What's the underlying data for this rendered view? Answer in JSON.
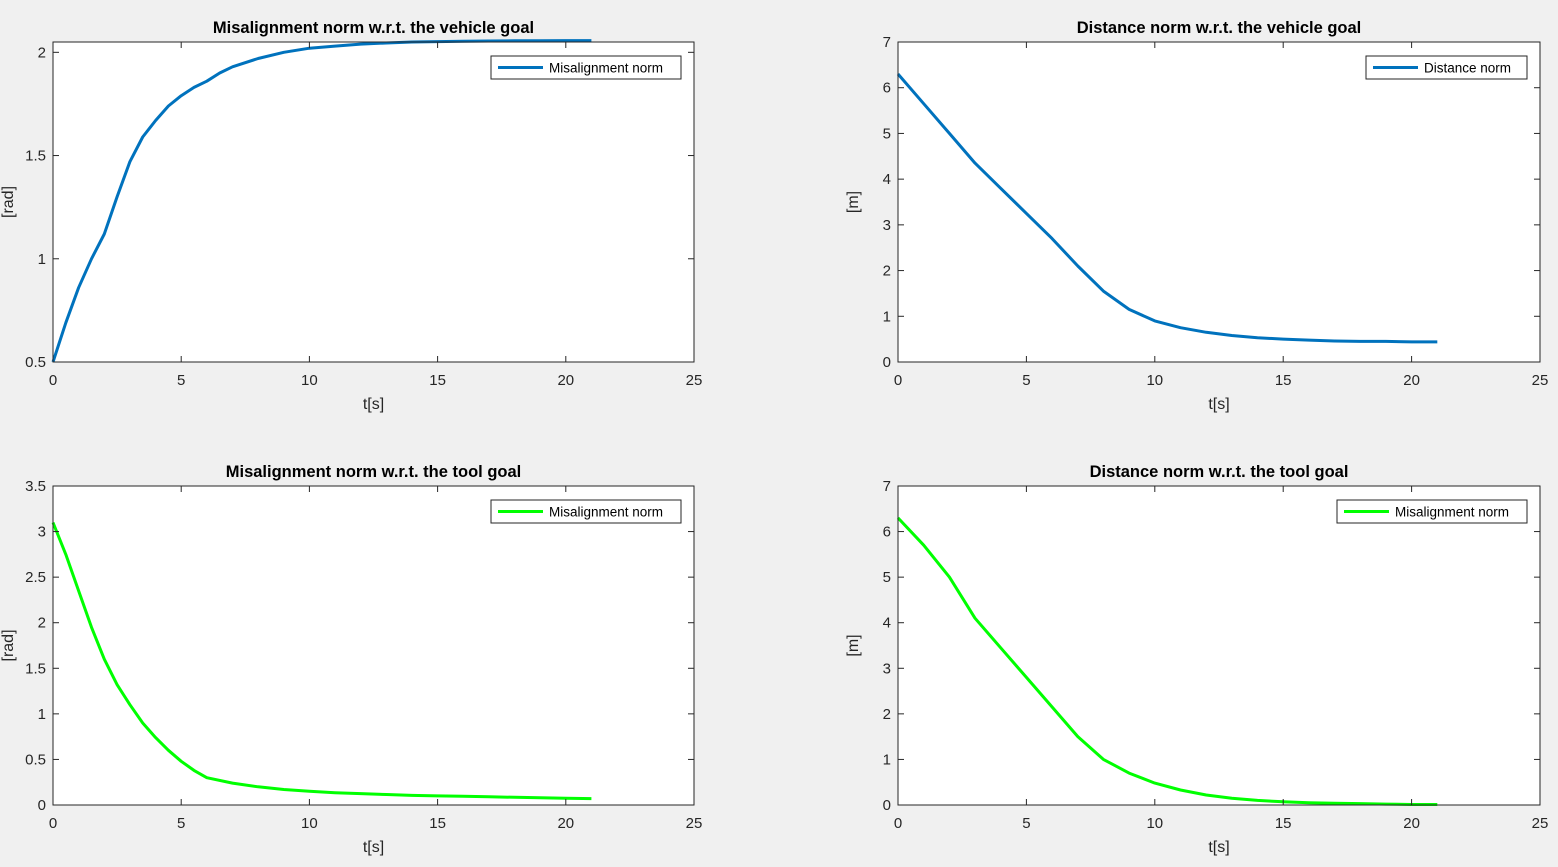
{
  "chart_data": [
    {
      "type": "line",
      "title": "Misalignment norm w.r.t. the vehicle goal",
      "xlabel": "t[s]",
      "ylabel": "[rad]",
      "xlim": [
        0,
        25
      ],
      "ylim": [
        0.5,
        2.05
      ],
      "xticks": [
        0,
        5,
        10,
        15,
        20,
        25
      ],
      "yticks": [
        0.5,
        1,
        1.5,
        2
      ],
      "legend_position": "top-right",
      "grid": false,
      "series": [
        {
          "name": "Misalignment norm",
          "color": "#0072bd",
          "x": [
            0,
            0.5,
            1,
            1.5,
            2,
            2.5,
            3,
            3.5,
            4,
            4.5,
            5,
            5.5,
            6,
            6.5,
            7,
            8,
            9,
            10,
            11,
            12,
            13,
            14,
            15,
            16,
            17,
            18,
            19,
            20,
            21
          ],
          "y": [
            0.5,
            0.69,
            0.86,
            1.0,
            1.12,
            1.3,
            1.47,
            1.59,
            1.67,
            1.74,
            1.79,
            1.83,
            1.86,
            1.9,
            1.93,
            1.97,
            2.0,
            2.02,
            2.03,
            2.04,
            2.045,
            2.05,
            2.052,
            2.054,
            2.055,
            2.056,
            2.056,
            2.057,
            2.057
          ]
        }
      ]
    },
    {
      "type": "line",
      "title": "Distance norm w.r.t. the vehicle goal",
      "xlabel": "t[s]",
      "ylabel": "[m]",
      "xlim": [
        0,
        25
      ],
      "ylim": [
        0,
        7
      ],
      "xticks": [
        0,
        5,
        10,
        15,
        20,
        25
      ],
      "yticks": [
        0,
        1,
        2,
        3,
        4,
        5,
        6,
        7
      ],
      "legend_position": "top-right",
      "grid": false,
      "series": [
        {
          "name": "Distance norm",
          "color": "#0072bd",
          "x": [
            0,
            1,
            2,
            3,
            4,
            5,
            6,
            7,
            8,
            9,
            10,
            11,
            12,
            13,
            14,
            15,
            16,
            17,
            18,
            19,
            20,
            21
          ],
          "y": [
            6.3,
            5.65,
            5.0,
            4.35,
            3.8,
            3.25,
            2.7,
            2.1,
            1.55,
            1.15,
            0.9,
            0.75,
            0.65,
            0.58,
            0.53,
            0.5,
            0.48,
            0.46,
            0.45,
            0.45,
            0.44,
            0.44
          ]
        }
      ]
    },
    {
      "type": "line",
      "title": "Misalignment norm w.r.t. the tool goal",
      "xlabel": "t[s]",
      "ylabel": "[rad]",
      "xlim": [
        0,
        25
      ],
      "ylim": [
        0,
        3.5
      ],
      "xticks": [
        0,
        5,
        10,
        15,
        20,
        25
      ],
      "yticks": [
        0,
        0.5,
        1,
        1.5,
        2,
        2.5,
        3,
        3.5
      ],
      "legend_position": "top-right",
      "grid": false,
      "series": [
        {
          "name": "Misalignment norm",
          "color": "#00ff00",
          "x": [
            0,
            0.5,
            1,
            1.5,
            2,
            2.5,
            3,
            3.5,
            4,
            4.5,
            5,
            5.5,
            6,
            7,
            8,
            9,
            10,
            11,
            12,
            13,
            14,
            15,
            16,
            17,
            18,
            19,
            20,
            21
          ],
          "y": [
            3.1,
            2.75,
            2.35,
            1.95,
            1.6,
            1.32,
            1.1,
            0.9,
            0.74,
            0.6,
            0.48,
            0.38,
            0.3,
            0.24,
            0.2,
            0.17,
            0.15,
            0.135,
            0.125,
            0.115,
            0.105,
            0.1,
            0.095,
            0.09,
            0.085,
            0.08,
            0.075,
            0.07
          ]
        }
      ]
    },
    {
      "type": "line",
      "title": "Distance norm w.r.t. the tool goal",
      "xlabel": "t[s]",
      "ylabel": "[m]",
      "xlim": [
        0,
        25
      ],
      "ylim": [
        0,
        7
      ],
      "xticks": [
        0,
        5,
        10,
        15,
        20,
        25
      ],
      "yticks": [
        0,
        1,
        2,
        3,
        4,
        5,
        6,
        7
      ],
      "legend_position": "top-right",
      "grid": false,
      "series": [
        {
          "name": "Misalignment norm",
          "color": "#00ff00",
          "x": [
            0,
            1,
            2,
            3,
            4,
            5,
            6,
            7,
            8,
            9,
            10,
            11,
            12,
            13,
            14,
            15,
            16,
            17,
            18,
            19,
            20,
            21
          ],
          "y": [
            6.3,
            5.7,
            5.0,
            4.1,
            3.45,
            2.8,
            2.15,
            1.5,
            1.0,
            0.7,
            0.48,
            0.33,
            0.22,
            0.15,
            0.1,
            0.07,
            0.05,
            0.04,
            0.03,
            0.02,
            0.01,
            0.01
          ]
        }
      ]
    }
  ]
}
